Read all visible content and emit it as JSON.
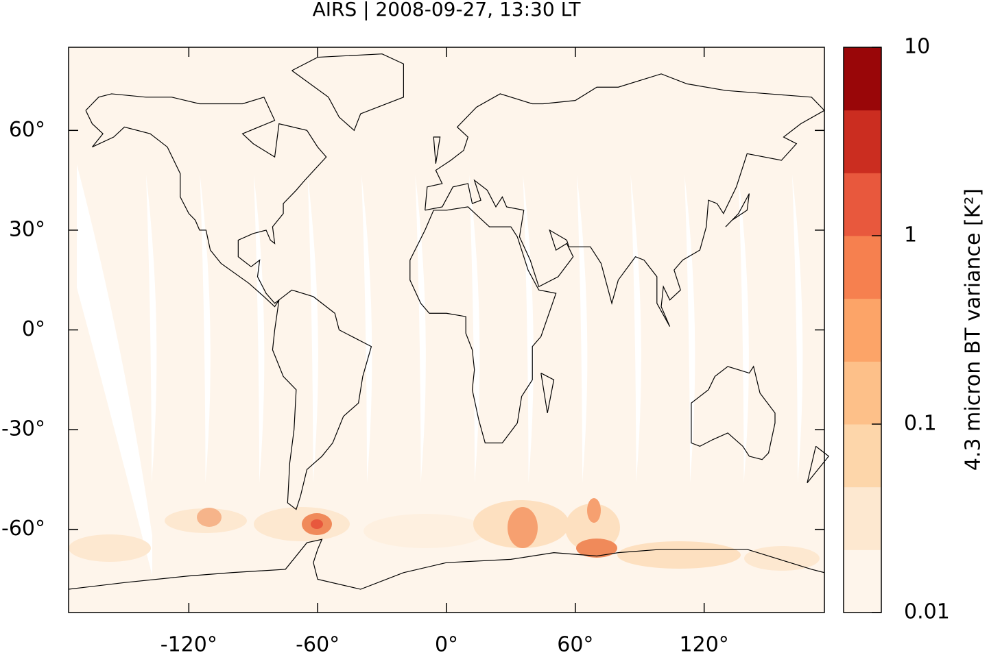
{
  "title": "AIRS | 2008-09-27, 13:30 LT",
  "map": {
    "xlim": [
      -176,
      176
    ],
    "ylim": [
      -85,
      85
    ],
    "xticks": [
      {
        "value": -120,
        "label": "-120°"
      },
      {
        "value": -60,
        "label": "-60°"
      },
      {
        "value": 0,
        "label": "0°"
      },
      {
        "value": 60,
        "label": "60°"
      },
      {
        "value": 120,
        "label": "120°"
      }
    ],
    "yticks": [
      {
        "value": -60,
        "label": "-60°"
      },
      {
        "value": -30,
        "label": "-30°"
      },
      {
        "value": 0,
        "label": "0°"
      },
      {
        "value": 30,
        "label": "30°"
      },
      {
        "value": 60,
        "label": "60°"
      }
    ]
  },
  "colorbar": {
    "label": "4.3 micron BT variance [K²]",
    "scale": "log",
    "lim": [
      0.01,
      10
    ],
    "ticks": [
      0.01,
      0.1,
      1,
      10
    ],
    "colors": [
      "#fef5eb",
      "#fde8d0",
      "#fdd6aa",
      "#fdc089",
      "#fca468",
      "#f6804f",
      "#e8583d",
      "#cb2d20",
      "#990608"
    ]
  }
}
